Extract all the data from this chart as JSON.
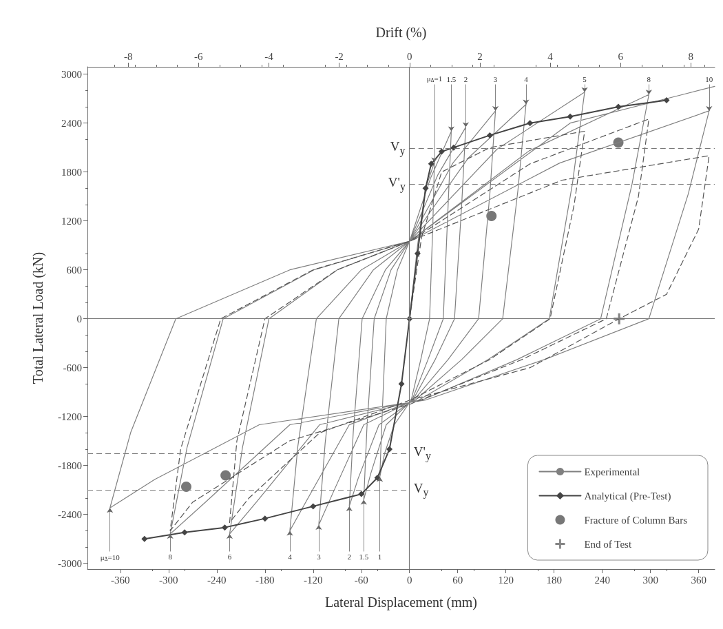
{
  "chart_data": {
    "type": "line",
    "xlabel": "Lateral Displacement (mm)",
    "ylabel": "Total Lateral Load (kN)",
    "x2label": "Drift (%)",
    "xlim": [
      -401,
      380
    ],
    "xticks": [
      -360,
      -300,
      -240,
      -180,
      -120,
      -60,
      0,
      60,
      120,
      180,
      240,
      300,
      360
    ],
    "ylim": [
      -3070,
      3090
    ],
    "yticks": [
      -3000,
      -2400,
      -1800,
      -1200,
      -600,
      0,
      600,
      1200,
      1800,
      2400,
      3000
    ],
    "x2lim": [
      -9.16,
      8.68
    ],
    "x2ticks": [
      -8,
      -6,
      -4,
      -2,
      0,
      2,
      4,
      6,
      8
    ],
    "grid": false,
    "legend": "bottom right",
    "series": [
      {
        "name": "Experimental",
        "color": "#808080",
        "line_style": "solid",
        "marker": "none",
        "x": [
          0,
          10,
          20,
          31,
          29,
          25,
          14,
          2,
          -19,
          -31,
          -37,
          -34,
          -29,
          -15,
          0,
          26,
          52,
          48,
          42,
          23,
          3,
          -29,
          -48,
          -57,
          -53,
          -44,
          -23,
          0,
          35,
          70,
          65,
          56,
          32,
          4,
          -38,
          -64,
          -75,
          -70,
          -59,
          -30,
          0,
          54,
          107,
          100,
          86,
          48,
          5,
          -57,
          -96,
          -113,
          -105,
          -88,
          -45,
          0,
          73,
          145,
          135,
          116,
          65,
          7,
          -75,
          -127,
          -149,
          -139,
          -116,
          -60,
          0,
          109,
          218,
          203,
          174,
          98,
          11,
          -112,
          -190,
          -224,
          -208,
          -175,
          -90,
          0,
          149,
          298,
          277,
          238,
          134,
          15,
          -149,
          -253,
          -298,
          -277,
          -232,
          -119,
          0,
          187,
          373,
          347,
          298,
          168,
          19,
          -187,
          -317,
          -373,
          -347,
          -291,
          -149,
          0,
          200,
          340,
          380
        ],
        "values": [
          0,
          900,
          1600,
          1920,
          1150,
          0,
          -500,
          -1000,
          -1300,
          -1650,
          -1940,
          -1160,
          0,
          600,
          950,
          1720,
          2300,
          1380,
          0,
          -500,
          -1000,
          -1300,
          -1890,
          -2220,
          -1330,
          0,
          600,
          950,
          1760,
          2350,
          1410,
          0,
          -500,
          -1000,
          -1300,
          -1960,
          -2300,
          -1380,
          0,
          600,
          950,
          1910,
          2550,
          1530,
          0,
          -500,
          -1000,
          -1300,
          -2150,
          -2530,
          -1520,
          0,
          600,
          950,
          1970,
          2630,
          1580,
          0,
          -500,
          -1000,
          -1300,
          -2210,
          -2600,
          -1560,
          0,
          600,
          950,
          2080,
          2780,
          1670,
          0,
          -500,
          -1000,
          -1300,
          -2240,
          -2640,
          -1580,
          0,
          600,
          950,
          2060,
          2750,
          1650,
          0,
          -500,
          -1000,
          -1300,
          -2240,
          -2640,
          -1580,
          0,
          600,
          950,
          1910,
          2550,
          1530,
          0,
          -500,
          -1000,
          -1300,
          -1970,
          -2320,
          -1390,
          0,
          600,
          950,
          2400,
          2750,
          2850
        ]
      },
      {
        "color": "#555555",
        "line_style": "dashed",
        "marker": "none",
        "x": [
          0,
          15,
          40,
          100,
          218,
          205,
          175,
          100,
          0,
          -112,
          -200,
          -224,
          -215,
          -180,
          -90,
          0,
          150,
          298,
          285,
          245,
          140,
          0,
          -150,
          -270,
          -298,
          -285,
          -235,
          -120,
          0,
          190,
          373,
          360,
          320,
          261,
          150,
          0
        ],
        "values": [
          0,
          1000,
          1800,
          2100,
          2300,
          1400,
          0,
          -500,
          -1000,
          -1400,
          -2200,
          -2500,
          -1500,
          0,
          600,
          950,
          1900,
          2450,
          1500,
          0,
          -500,
          -1050,
          -1500,
          -2250,
          -2600,
          -1600,
          0,
          600,
          950,
          1700,
          2000,
          1100,
          300,
          0,
          -600,
          -1000
        ]
      },
      {
        "name": "Analytical (Pre-Test)",
        "color": "#444444",
        "line_style": "solid",
        "marker": "diamond",
        "x": [
          -330,
          -280,
          -230,
          -180,
          -120,
          -60,
          -40,
          -25,
          -10,
          0,
          10,
          20,
          27,
          40,
          55,
          100,
          150,
          200,
          260,
          320
        ],
        "values": [
          -2700,
          -2620,
          -2560,
          -2450,
          -2300,
          -2150,
          -1950,
          -1600,
          -800,
          0,
          800,
          1600,
          1900,
          2050,
          2100,
          2250,
          2400,
          2480,
          2600,
          2680
        ]
      },
      {
        "name": "Fracture of Column Bars",
        "type": "scatter",
        "color": "#555555",
        "marker": "circle",
        "x": [
          260,
          102,
          -278,
          -229
        ],
        "values": [
          2160,
          1260,
          -2060,
          -1920
        ]
      },
      {
        "name": "End of Test",
        "type": "scatter",
        "color": "#666666",
        "marker": "cross",
        "x": [
          261
        ],
        "values": [
          0
        ]
      }
    ],
    "ref_lines": [
      {
        "axis": "y",
        "value": 0,
        "color": "#777777",
        "line_style": "solid"
      },
      {
        "axis": "x",
        "value": 0,
        "color": "#777777",
        "line_style": "solid"
      },
      {
        "axis": "y",
        "value": 2090,
        "label": "V$_{y}$",
        "color": "#777777",
        "line_style": "dashed"
      },
      {
        "axis": "y",
        "value": 1650,
        "label": "V'$_{y}$",
        "color": "#777777",
        "line_style": "dashed"
      },
      {
        "axis": "y",
        "value": -2100,
        "label": "V$_{y}$",
        "color": "#777777",
        "line_style": "dashed"
      },
      {
        "axis": "y",
        "value": -1650,
        "label": "V'$_{y}$",
        "color": "#777777",
        "line_style": "dashed"
      }
    ],
    "annotations": [
      {
        "text": "μ$_{Δ}$=1",
        "x": 31,
        "y": 1920
      },
      {
        "text": "1.5",
        "x": 52,
        "y": 2300
      },
      {
        "text": "2",
        "x": 70,
        "y": 2350
      },
      {
        "text": "3",
        "x": 107,
        "y": 2550
      },
      {
        "text": "4",
        "x": 145,
        "y": 2630
      },
      {
        "text": "5",
        "x": 218,
        "y": 2780
      },
      {
        "text": "8",
        "x": 298,
        "y": 2750
      },
      {
        "text": "10",
        "x": 373,
        "y": 2550
      },
      {
        "text": "μ$_{Δ}$=10",
        "x": -373,
        "y": -2320
      },
      {
        "text": "8",
        "x": -298,
        "y": -2640
      },
      {
        "text": "6",
        "x": -224,
        "y": -2640
      },
      {
        "text": "4",
        "x": -149,
        "y": -2600
      },
      {
        "text": "3",
        "x": -113,
        "y": -2530
      },
      {
        "text": "2",
        "x": -75,
        "y": -2300
      },
      {
        "text": "1.5",
        "x": -57,
        "y": -2220
      },
      {
        "text": "1",
        "x": -37,
        "y": -1940
      }
    ]
  }
}
